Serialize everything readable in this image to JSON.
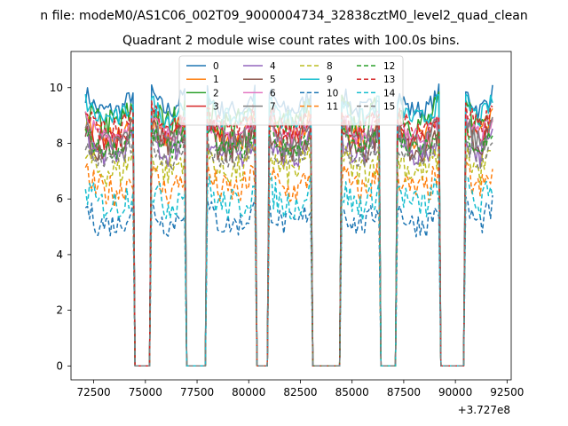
{
  "suptitle": "n file: modeM0/AS1C06_002T09_9000004734_32838cztM0_level2_quad_clean",
  "chart_data": {
    "type": "line",
    "title": "Quadrant 2 module wise count rates with 100.0s bins.",
    "xlabel": "",
    "ylabel": "",
    "x_offset_label": "+3.727e8",
    "xlim": [
      71400,
      92700
    ],
    "ylim": [
      -0.5,
      11.3
    ],
    "x_ticks": [
      72500,
      75000,
      77500,
      80000,
      82500,
      85000,
      87500,
      90000,
      92500
    ],
    "x_tick_labels": [
      "72500",
      "75000",
      "77500",
      "80000",
      "82500",
      "85000",
      "87500",
      "90000",
      "92500"
    ],
    "y_ticks": [
      0,
      2,
      4,
      6,
      8,
      10
    ],
    "y_tick_labels": [
      "0",
      "2",
      "4",
      "6",
      "8",
      "10"
    ],
    "grid": false,
    "legend_position": "upper center",
    "legend_columns": 4,
    "on_intervals": [
      [
        72100,
        74400
      ],
      [
        75300,
        76900
      ],
      [
        78000,
        80300
      ],
      [
        81000,
        83000
      ],
      [
        84500,
        86300
      ],
      [
        87200,
        89200
      ],
      [
        90500,
        91800
      ]
    ],
    "x_step": 100,
    "series": [
      {
        "name": "0",
        "color": "#1f77b4",
        "dash": "solid",
        "level": 9.2
      },
      {
        "name": "1",
        "color": "#ff7f0e",
        "dash": "solid",
        "level": 8.2
      },
      {
        "name": "2",
        "color": "#2ca02c",
        "dash": "solid",
        "level": 8.7
      },
      {
        "name": "3",
        "color": "#d62728",
        "dash": "solid",
        "level": 8.1
      },
      {
        "name": "4",
        "color": "#9467bd",
        "dash": "solid",
        "level": 7.6
      },
      {
        "name": "5",
        "color": "#8c564b",
        "dash": "solid",
        "level": 7.9
      },
      {
        "name": "6",
        "color": "#e377c2",
        "dash": "solid",
        "level": 8.3
      },
      {
        "name": "7",
        "color": "#7f7f7f",
        "dash": "solid",
        "level": 8.0
      },
      {
        "name": "8",
        "color": "#bcbd22",
        "dash": "dashed",
        "level": 7.0
      },
      {
        "name": "9",
        "color": "#17becf",
        "dash": "solid",
        "level": 8.9
      },
      {
        "name": "10",
        "color": "#1f77b4",
        "dash": "dashed",
        "level": 5.1
      },
      {
        "name": "11",
        "color": "#ff7f0e",
        "dash": "dashed",
        "level": 6.3
      },
      {
        "name": "12",
        "color": "#2ca02c",
        "dash": "dashed",
        "level": 7.8
      },
      {
        "name": "13",
        "color": "#d62728",
        "dash": "dashed",
        "level": 8.5
      },
      {
        "name": "14",
        "color": "#17becf",
        "dash": "dashed",
        "level": 5.8
      },
      {
        "name": "15",
        "color": "#7f7f7f",
        "dash": "dashed",
        "level": 7.4
      }
    ]
  }
}
